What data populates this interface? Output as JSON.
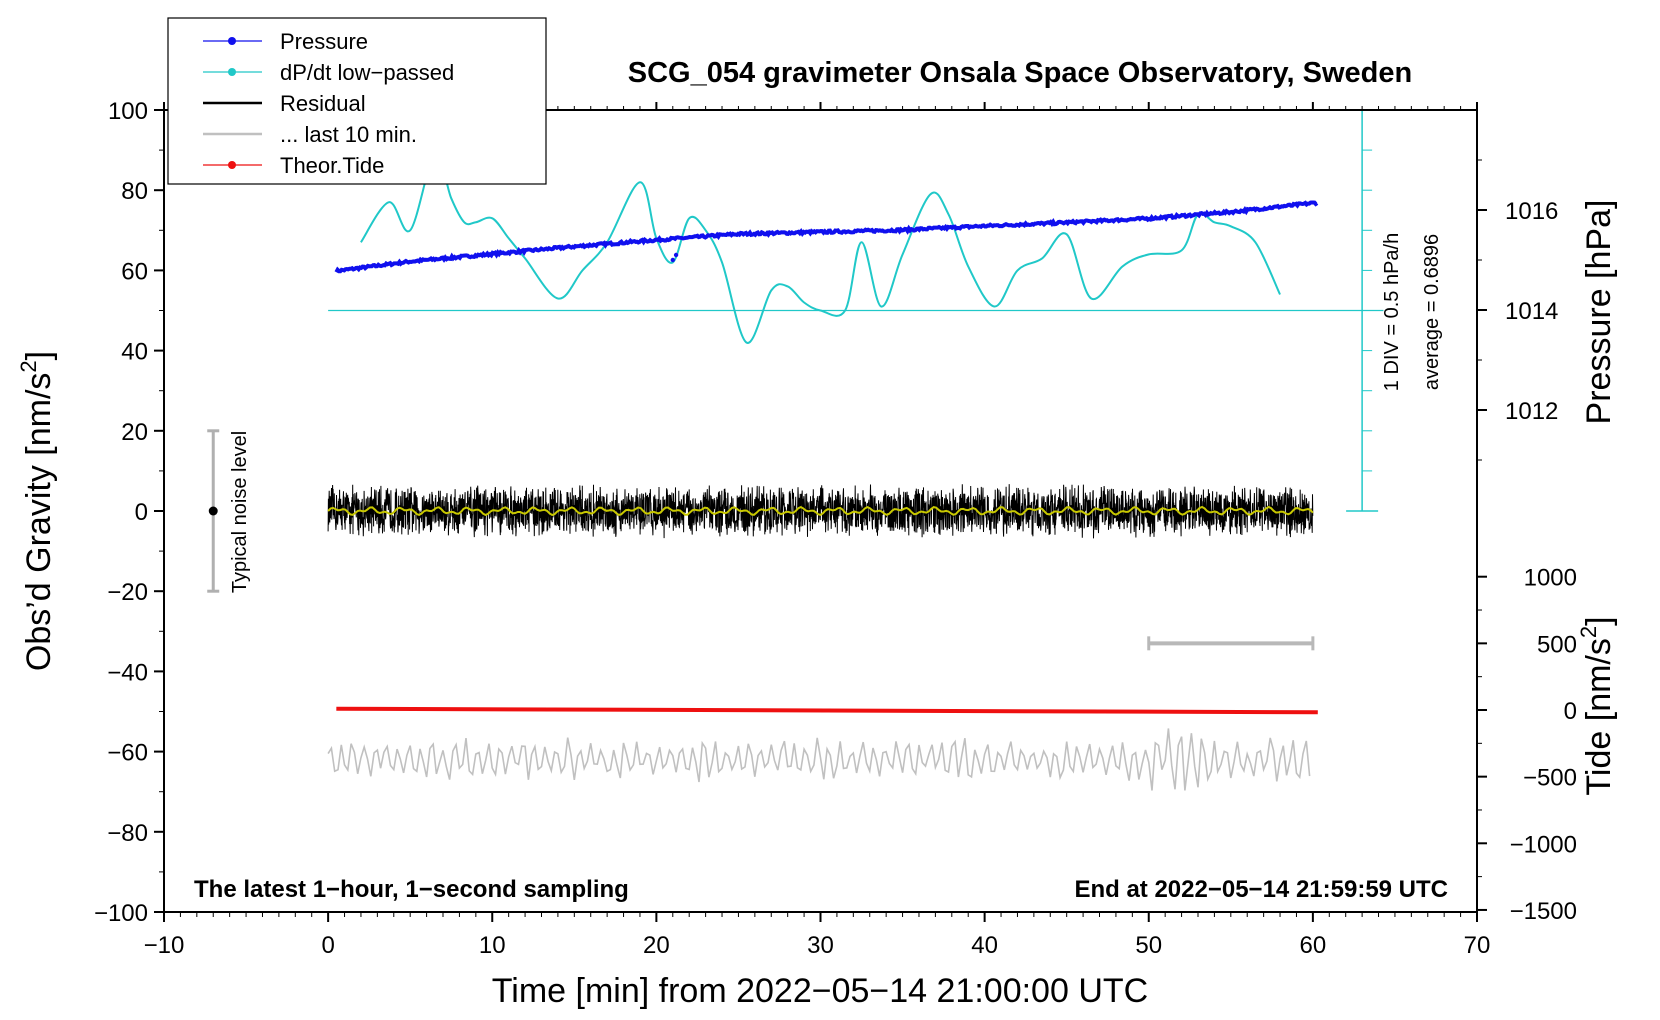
{
  "chart_data": {
    "type": "line",
    "title": "SCG_054 gravimeter Onsala Space Observatory, Sweden",
    "xlabel": "Time [min] from 2022−05−14 21:00:00 UTC",
    "ylabel_left": "Obs’d Gravity [nm/s",
    "ylabel_pressure": "Pressure [hPa]",
    "ylabel_tide": "Tide [nm/s",
    "sup2": "2",
    "close_bracket": "]",
    "xlim": [
      -10,
      70
    ],
    "xticks": [
      -10,
      0,
      10,
      20,
      30,
      40,
      50,
      60,
      70
    ],
    "xtick_labels": [
      "−10",
      "0",
      "10",
      "20",
      "30",
      "40",
      "50",
      "60",
      "70"
    ],
    "ylim_left": [
      -100,
      100
    ],
    "yticks_left": [
      -100,
      -80,
      -60,
      -40,
      -20,
      0,
      20,
      40,
      60,
      80,
      100
    ],
    "ytick_labels_left": [
      "−100",
      "−80",
      "−60",
      "−40",
      "−20",
      "0",
      "20",
      "40",
      "60",
      "80",
      "100"
    ],
    "pressure_axis": {
      "ticks": [
        1012,
        1014,
        1016
      ],
      "tick_labels": [
        "1012",
        "1014",
        "1016"
      ],
      "range_hpa": [
        1010,
        1018
      ]
    },
    "tide_axis": {
      "ticks": [
        1000,
        500,
        0,
        -500,
        -1000,
        -1500
      ],
      "tick_labels": [
        "1000",
        "500",
        "0",
        "−500",
        "−1000",
        "−1500"
      ],
      "range": [
        -1500,
        1000
      ]
    },
    "legend": [
      {
        "label": "Pressure",
        "color": "#1010ee",
        "marker": true
      },
      {
        "label": "dP/dt low−passed",
        "color": "#20c8c8",
        "marker": true
      },
      {
        "label": "Residual",
        "color": "#000000",
        "marker": false
      },
      {
        "label": "... last 10 min.",
        "color": "#c0c0c0",
        "marker": false
      },
      {
        "label": "Theor.Tide",
        "color": "#ee1010",
        "marker": true
      }
    ],
    "series": [
      {
        "name": "Pressure",
        "color": "#1010ee",
        "units": "hPa",
        "x": [
          0.5,
          5,
          10,
          15,
          20,
          25,
          30,
          35,
          40,
          45,
          50,
          55,
          60.3
        ],
        "values": [
          1014.78,
          1014.97,
          1015.12,
          1015.27,
          1015.4,
          1015.52,
          1015.56,
          1015.6,
          1015.68,
          1015.75,
          1015.83,
          1015.96,
          1016.15
        ]
      },
      {
        "name": "dP/dt low-passed",
        "color": "#20c8c8",
        "units": "gravity-axis",
        "x": [
          2,
          3.7,
          5,
          6.5,
          7.5,
          8.3,
          9,
          10,
          11,
          12,
          14,
          15.5,
          17,
          19,
          20,
          21,
          22,
          23,
          24,
          25.5,
          27,
          28,
          29,
          30,
          31.5,
          32.5,
          33.7,
          35,
          36.7,
          37.8,
          39,
          40.6,
          42,
          43.5,
          45,
          46.5,
          48.4,
          50,
          52,
          53,
          54,
          55,
          56.5,
          58
        ],
        "values": [
          67,
          77,
          70,
          89,
          78,
          72,
          72,
          73,
          68,
          63,
          53,
          60,
          67,
          82,
          68,
          62,
          73,
          70,
          62,
          42,
          55,
          56,
          52,
          50,
          50,
          67,
          51,
          64,
          79,
          74,
          61,
          51,
          60,
          63,
          69,
          53,
          61,
          64,
          65,
          74,
          72,
          71,
          67,
          54
        ]
      },
      {
        "name": "Residual",
        "color": "#000000",
        "units": "nm/s2",
        "x_range": [
          0,
          60
        ],
        "amplitude": 6,
        "center": 0
      },
      {
        "name": "... last 10 min.",
        "color": "#c0c0c0",
        "units": "nm/s2",
        "x_range": [
          0,
          60
        ],
        "center": -62,
        "amplitude": 4
      },
      {
        "name": "Theor.Tide",
        "color": "#ee1010",
        "units": "nm/s2",
        "x": [
          0.5,
          60.3
        ],
        "values": [
          -49.3,
          -50.2
        ]
      }
    ],
    "dpdt_zero_level": 50,
    "dpdt_scale_bar": {
      "x": 63,
      "from": 0,
      "to": 100,
      "label": "1 DIV = 0.5 hPa/h",
      "average_label": "average = 0.6896"
    },
    "noise_bar": {
      "x": -7,
      "from": -20,
      "to": 20,
      "center": 0,
      "label": "Typical noise level"
    },
    "last10_bar": {
      "x_from": 50,
      "x_to": 60,
      "y": -33
    },
    "annotations": {
      "bottom_left": "The latest 1−hour, 1−second sampling",
      "bottom_right": "End at 2022−05−14 21:59:59 UTC"
    }
  }
}
